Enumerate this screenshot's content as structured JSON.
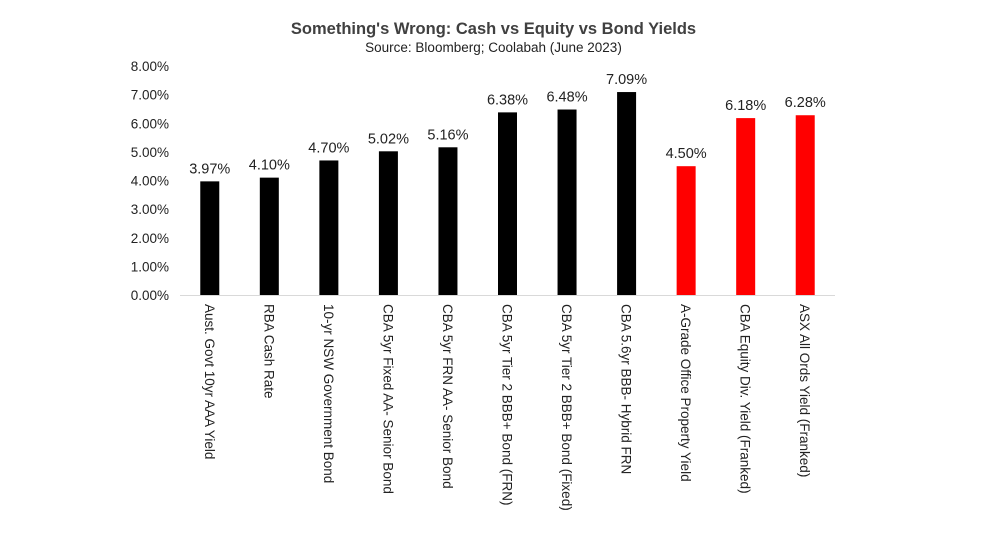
{
  "chart_data": {
    "type": "bar",
    "title": "Something's  Wrong:  Cash vs Equity  vs Bond Yields",
    "subtitle": "Source: Bloomberg; Coolabah (June 2023)",
    "xlabel": "",
    "ylabel": "",
    "ylim": [
      0,
      8
    ],
    "yticks": [
      "0.00%",
      "1.00%",
      "2.00%",
      "3.00%",
      "4.00%",
      "5.00%",
      "6.00%",
      "7.00%",
      "8.00%"
    ],
    "grid": false,
    "legend": "none",
    "categories": [
      "Aust. Govt 10yr AAA Yield",
      "RBA Cash Rate",
      "10-yr NSW Government Bond",
      "CBA 5yr Fixed AA- Senior Bond",
      "CBA 5yr FRN AA- Senior Bond",
      "CBA 5yr Tier 2 BBB+ Bond (FRN)",
      "CBA 5yr Tier 2 BBB+ Bond (Fixed)",
      "CBA 5.6yr BBB- Hybrid FRN",
      "A-Grade Office Property Yield",
      "CBA Equity Div. Yield (Franked)",
      "ASX All Ords  Yield (Franked)"
    ],
    "values": [
      3.97,
      4.1,
      4.7,
      5.02,
      5.16,
      6.38,
      6.48,
      7.09,
      4.5,
      6.18,
      6.28
    ],
    "data_labels": [
      "3.97%",
      "4.10%",
      "4.70%",
      "5.02%",
      "5.16%",
      "6.38%",
      "6.48%",
      "7.09%",
      "4.50%",
      "6.18%",
      "6.28%"
    ],
    "bar_colors": [
      "#000000",
      "#000000",
      "#000000",
      "#000000",
      "#000000",
      "#000000",
      "#000000",
      "#000000",
      "#ff0000",
      "#ff0000",
      "#ff0000"
    ]
  }
}
